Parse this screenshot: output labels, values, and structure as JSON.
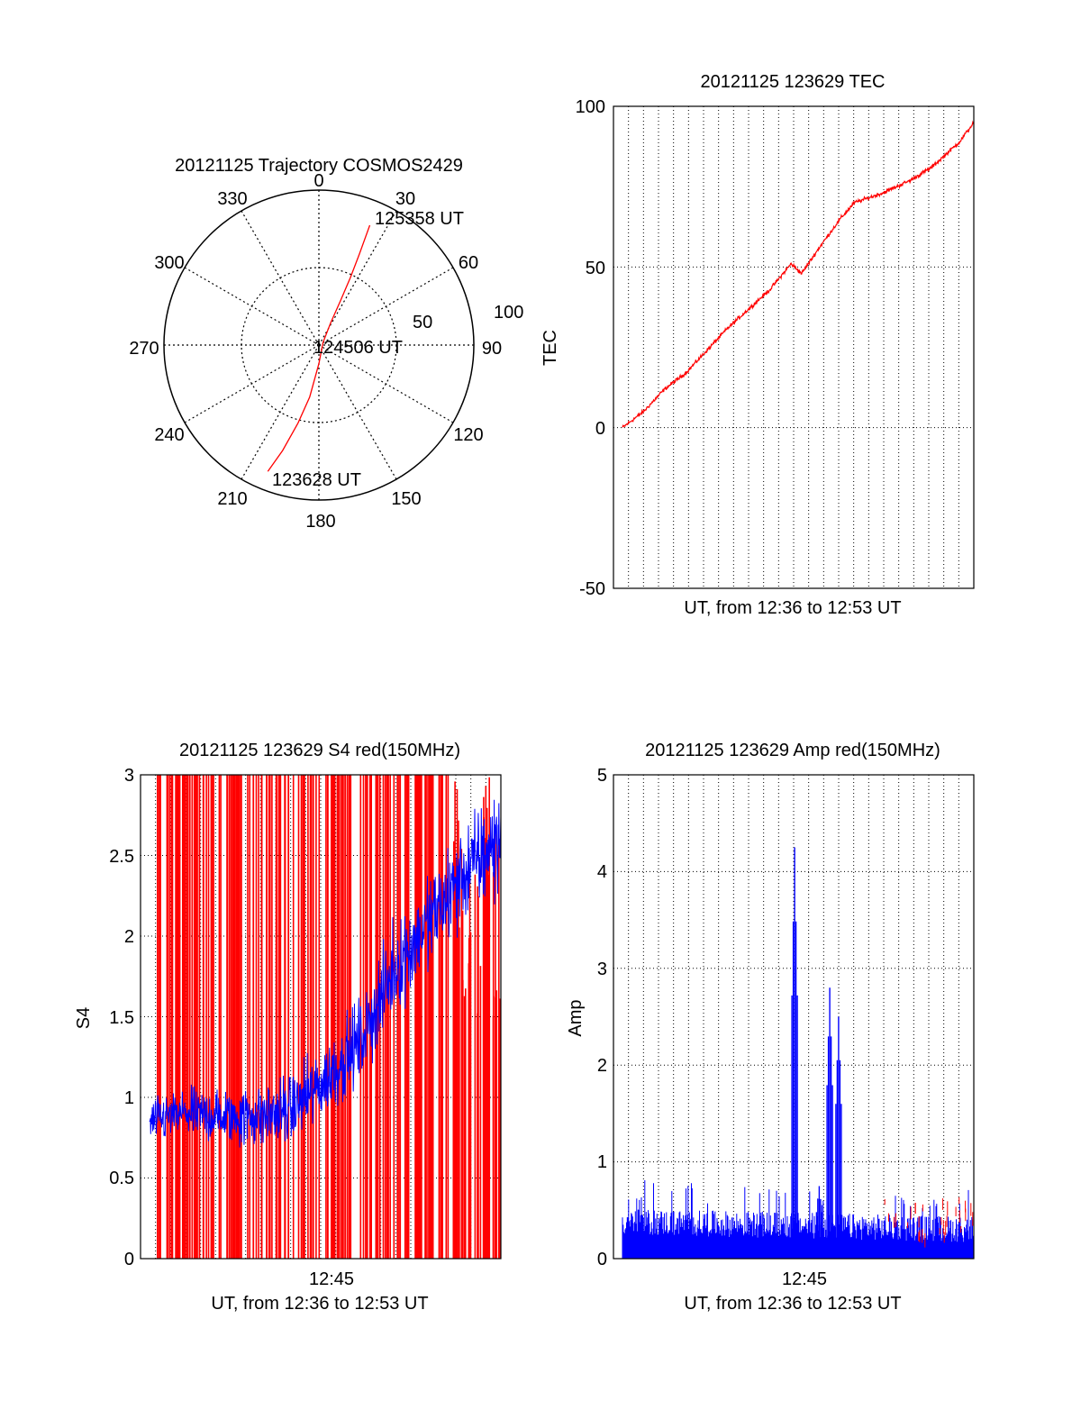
{
  "chart_data": [
    {
      "type": "polar",
      "title": "20121125 Trajectory COSMOS2429",
      "azimuth_labels": [
        "0",
        "30",
        "60",
        "90",
        "120",
        "150",
        "180",
        "210",
        "240",
        "270",
        "300",
        "330"
      ],
      "radius_labels": [
        "50",
        "100"
      ],
      "annotations": [
        {
          "text": "125358 UT"
        },
        {
          "text": "124506 UT"
        },
        {
          "text": "123628 UT"
        }
      ],
      "trajectory": {
        "color": "#ff0000",
        "points": [
          {
            "az": 202,
            "r": 88
          },
          {
            "az": 199,
            "r": 72
          },
          {
            "az": 195,
            "r": 52
          },
          {
            "az": 190,
            "r": 34
          },
          {
            "az": 180,
            "r": 12
          },
          {
            "az": 60,
            "r": 3
          },
          {
            "az": 28,
            "r": 16
          },
          {
            "az": 26,
            "r": 32
          },
          {
            "az": 25,
            "r": 48
          },
          {
            "az": 24,
            "r": 64
          },
          {
            "az": 23,
            "r": 84
          }
        ]
      }
    },
    {
      "type": "line",
      "title": "20121125 123629 TEC",
      "xlabel": "UT, from 12:36 to 12:53 UT",
      "ylabel": "TEC",
      "ylim": [
        -50,
        100
      ],
      "yticks": [
        "100",
        "50",
        "0",
        "-50"
      ],
      "grid": true,
      "series": [
        {
          "color": "#ff0000",
          "x_fraction": [
            0,
            0.06,
            0.12,
            0.18,
            0.24,
            0.3,
            0.36,
            0.42,
            0.48,
            0.51,
            0.56,
            0.62,
            0.66,
            0.74,
            0.82,
            0.88,
            0.92,
            0.96,
            1.0
          ],
          "values": [
            0,
            5,
            12,
            17,
            24,
            31,
            37,
            43,
            51,
            48,
            56,
            65,
            70,
            73,
            77,
            81,
            85,
            89,
            95
          ]
        }
      ]
    },
    {
      "type": "line",
      "title": "20121125 123629 S4 red(150MHz)",
      "xlabel": "UT, from 12:36 to 12:53 UT",
      "ylabel": "S4",
      "ylim": [
        0,
        3
      ],
      "yticks": [
        "3",
        "2.5",
        "2",
        "1.5",
        "1",
        "0.5",
        "0"
      ],
      "xticks": [
        "12:45"
      ],
      "grid": true,
      "series": [
        {
          "color": "#ff0000",
          "style": "vertical-spikes"
        },
        {
          "color": "#0000ff",
          "x_fraction": [
            0,
            0.1,
            0.2,
            0.3,
            0.4,
            0.5,
            0.6,
            0.7,
            0.8,
            0.9,
            1.0
          ],
          "values": [
            0.85,
            0.9,
            0.88,
            0.88,
            0.92,
            1.1,
            1.35,
            1.8,
            2.1,
            2.4,
            2.6
          ]
        }
      ]
    },
    {
      "type": "line",
      "title": "20121125 123629 Amp red(150MHz)",
      "xlabel": "UT, from 12:36 to 12:53 UT",
      "ylabel": "Amp",
      "ylim": [
        0,
        5
      ],
      "yticks": [
        "5",
        "4",
        "3",
        "2",
        "1",
        "0"
      ],
      "xticks": [
        "12:45"
      ],
      "grid": true,
      "series": [
        {
          "color": "#0000ff",
          "baseline": 0.45,
          "peaks": [
            {
              "x_fraction": 0.49,
              "value": 4.25
            },
            {
              "x_fraction": 0.59,
              "value": 2.8
            },
            {
              "x_fraction": 0.615,
              "value": 2.5
            },
            {
              "x_fraction": 0.56,
              "value": 0.75
            }
          ]
        },
        {
          "color": "#ff0000",
          "style": "sparse-spikes"
        }
      ]
    }
  ]
}
